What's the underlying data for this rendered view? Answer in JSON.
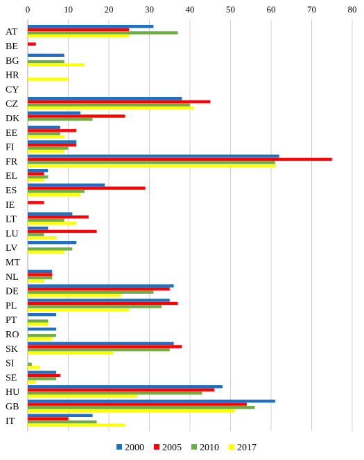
{
  "chart_data": {
    "type": "bar",
    "orientation": "horizontal",
    "categories": [
      "AT",
      "BE",
      "BG",
      "HR",
      "CY",
      "CZ",
      "DK",
      "EE",
      "FI",
      "FR",
      "EL",
      "ES",
      "IE",
      "LT",
      "LU",
      "LV",
      "MT",
      "NL",
      "DE",
      "PL",
      "PT",
      "RO",
      "SK",
      "SI",
      "SE",
      "HU",
      "GB",
      "IT"
    ],
    "series": [
      {
        "name": "2000",
        "color": "#1f6fc5",
        "values": [
          31,
          0,
          9,
          0,
          0,
          38,
          13,
          8,
          12,
          62,
          5,
          19,
          0,
          11,
          5,
          12,
          0,
          6,
          36,
          35,
          7,
          7,
          36,
          0,
          7,
          48,
          61,
          16
        ]
      },
      {
        "name": "2005",
        "color": "#ff0000",
        "values": [
          25,
          2,
          0,
          0,
          0,
          45,
          24,
          12,
          12,
          75,
          4,
          29,
          4,
          15,
          17,
          0,
          0,
          6,
          35,
          37,
          0,
          0,
          38,
          0,
          8,
          46,
          54,
          10
        ]
      },
      {
        "name": "2010",
        "color": "#70ad47",
        "values": [
          37,
          0,
          9,
          0,
          0,
          40,
          16,
          8,
          10,
          61,
          5,
          14,
          0,
          9,
          4,
          11,
          0,
          6,
          31,
          33,
          5,
          7,
          35,
          1,
          7,
          43,
          56,
          17
        ]
      },
      {
        "name": "2017",
        "color": "#ffff00",
        "values": [
          25,
          0,
          14,
          10,
          0,
          41,
          0,
          9,
          9,
          61,
          4,
          13,
          0,
          12,
          7,
          9,
          0,
          4,
          23,
          25,
          5,
          6,
          21,
          3,
          2,
          27,
          51,
          24
        ]
      }
    ],
    "xlim": [
      0,
      80
    ],
    "xticks": [
      0,
      10,
      20,
      30,
      40,
      50,
      60,
      70,
      80
    ],
    "x_axis_position": "top",
    "grid": true,
    "legend_position": "bottom"
  }
}
